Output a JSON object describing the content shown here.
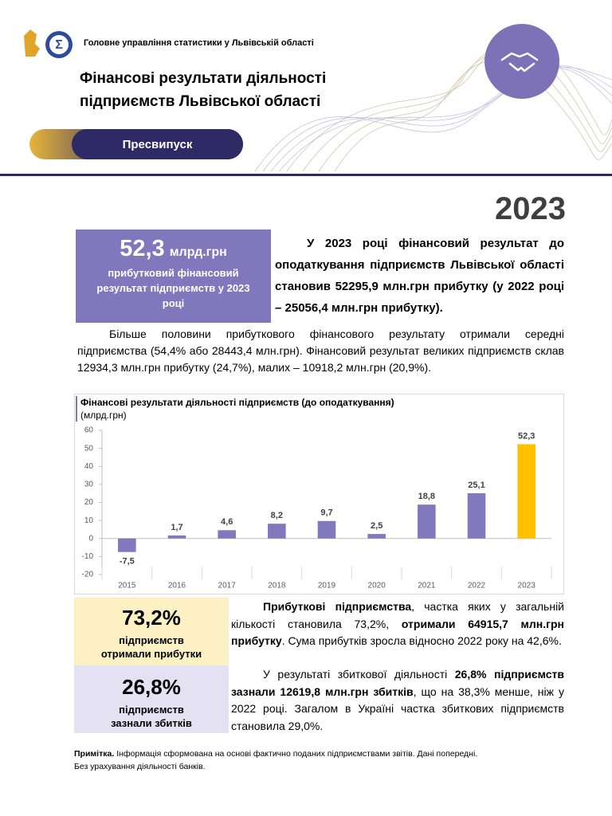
{
  "header": {
    "org": "Головне управління статистики у Львівській області",
    "title": [
      "Фінансові результати діяльності",
      "підприємств Львівської області"
    ],
    "badge": "Пресвипуск"
  },
  "year": "2023",
  "highlight": {
    "value": "52,3",
    "unit": "млрд.грн",
    "caption": "прибутковий фінансовий результат підприємств у 2023 році"
  },
  "intro": "У 2023 році фінансовий результат до оподаткування підприємств Львівської області становив 52295,9 млн.грн прибутку (у 2022  році – 25056,4 млн.грн прибутку).",
  "paragraph": "Більше половини прибуткового фінансового результату отримали середні підприємства (54,4% або 28443,4 млн.грн). Фінансовий результат великих підприємств склав 12934,3 млн.грн прибутку (24,7%), малих – 10918,2 млн.грн (20,9%).",
  "chart_data": {
    "type": "bar",
    "title": "Фінансові результати діяльності підприємств (до оподаткування)",
    "subtitle": "(млрд.грн)",
    "categories": [
      "2015",
      "2016",
      "2017",
      "2018",
      "2019",
      "2020",
      "2021",
      "2022",
      "2023"
    ],
    "values": [
      -7.5,
      1.7,
      4.6,
      8.2,
      9.7,
      2.5,
      18.8,
      25.1,
      52.3
    ],
    "value_labels": [
      "-7,5",
      "1,7",
      "4,6",
      "8,2",
      "9,7",
      "2,5",
      "18,8",
      "25,1",
      "52,3"
    ],
    "colors": [
      "#8178bd",
      "#8178bd",
      "#8178bd",
      "#8178bd",
      "#8178bd",
      "#8178bd",
      "#8178bd",
      "#8178bd",
      "#ffc000"
    ],
    "ylim": [
      -20,
      60
    ],
    "yticks": [
      -20,
      -10,
      0,
      10,
      20,
      30,
      40,
      50,
      60
    ],
    "grid": false
  },
  "stats": [
    {
      "value": "73,2%",
      "caption": "підприємств отримали прибутки"
    },
    {
      "value": "26,8%",
      "caption": "підприємств зазнали збитків"
    }
  ],
  "details": [
    [
      {
        "text": "Прибуткові підприємства",
        "bold": true
      },
      {
        "text": ", частка яких у загальній кількості становила 73,2%, ",
        "bold": false
      },
      {
        "text": "отримали 64915,7 млн.грн прибутку",
        "bold": true
      },
      {
        "text": ". Сума прибутків зросла відносно 2022 року на 42,6%.",
        "bold": false
      }
    ],
    [
      {
        "text": "У результаті збиткової діяльності ",
        "bold": false
      },
      {
        "text": "26,8% підприємств зазнали 12619,8 млн.грн збитків",
        "bold": true
      },
      {
        "text": ", що на 38,3% менше, ніж у 2022 році. Загалом в Україні частка збиткових підприємств становила 29,0%.",
        "bold": false
      }
    ]
  ],
  "note": {
    "label": "Примітка.",
    "text": "Інформація сформована на основі фактично поданих підприємствами звітів. Дані попередні.",
    "line2": "Без урахування діяльності банків."
  }
}
